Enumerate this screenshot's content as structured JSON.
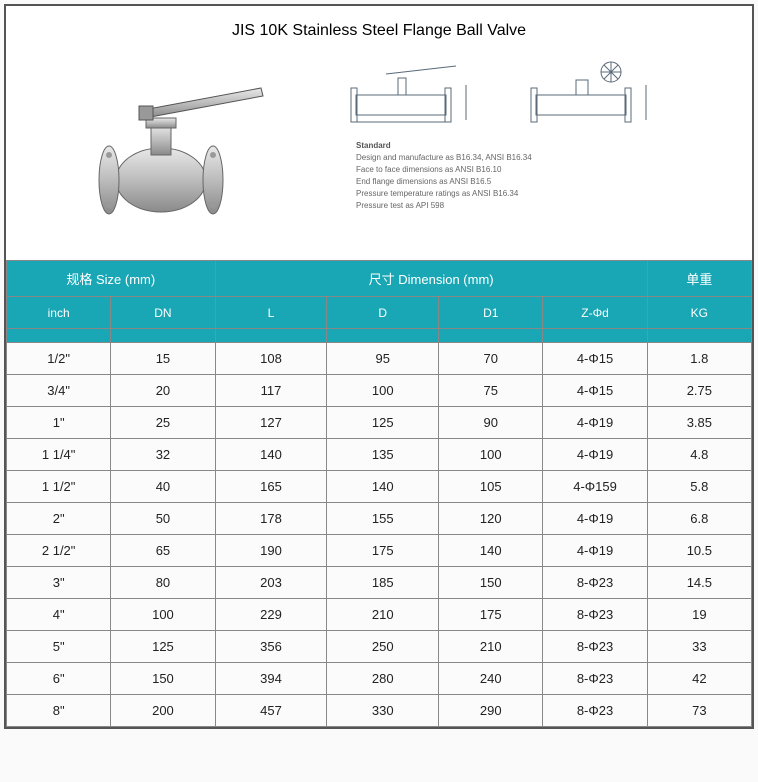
{
  "title": "JIS 10K  Stainless Steel Flange Ball Valve",
  "notes": {
    "heading": "Standard",
    "lines": [
      "Design and manufacture as B16.34, ANSI B16.34",
      "Face to face dimensions as ANSI B16.10",
      "End flange dimensions as ANSI B16.5",
      "Pressure temperature ratings as ANSI B16.34",
      "Pressure test as API 598"
    ]
  },
  "table": {
    "header_bg": "#19a7b5",
    "group_headers": [
      {
        "label": "规格 Size (mm)",
        "span": 2
      },
      {
        "label": "尺寸 Dimension (mm)",
        "span": 4
      },
      {
        "label": "单重",
        "span": 1
      }
    ],
    "sub_headers": [
      "inch",
      "DN",
      "L",
      "D",
      "D1",
      "Z-Φd",
      "KG"
    ],
    "rows": [
      [
        "1/2\"",
        "15",
        "108",
        "95",
        "70",
        "4-Φ15",
        "1.8"
      ],
      [
        "3/4\"",
        "20",
        "117",
        "100",
        "75",
        "4-Φ15",
        "2.75"
      ],
      [
        "1\"",
        "25",
        "127",
        "125",
        "90",
        "4-Φ19",
        "3.85"
      ],
      [
        "1 1/4\"",
        "32",
        "140",
        "135",
        "100",
        "4-Φ19",
        "4.8"
      ],
      [
        "1 1/2\"",
        "40",
        "165",
        "140",
        "105",
        "4-Φ159",
        "5.8"
      ],
      [
        "2\"",
        "50",
        "178",
        "155",
        "120",
        "4-Φ19",
        "6.8"
      ],
      [
        "2 1/2\"",
        "65",
        "190",
        "175",
        "140",
        "4-Φ19",
        "10.5"
      ],
      [
        "3\"",
        "80",
        "203",
        "185",
        "150",
        "8-Φ23",
        "14.5"
      ],
      [
        "4\"",
        "100",
        "229",
        "210",
        "175",
        "8-Φ23",
        "19"
      ],
      [
        "5\"",
        "125",
        "356",
        "250",
        "210",
        "8-Φ23",
        "33"
      ],
      [
        "6\"",
        "150",
        "394",
        "280",
        "240",
        "8-Φ23",
        "42"
      ],
      [
        "8\"",
        "200",
        "457",
        "330",
        "290",
        "8-Φ23",
        "73"
      ]
    ]
  },
  "colors": {
    "border": "#888888",
    "sheet_border": "#555555",
    "row_bg": "#fbfbfb",
    "text": "#222222",
    "drawing_stroke": "#5a6a7a"
  }
}
